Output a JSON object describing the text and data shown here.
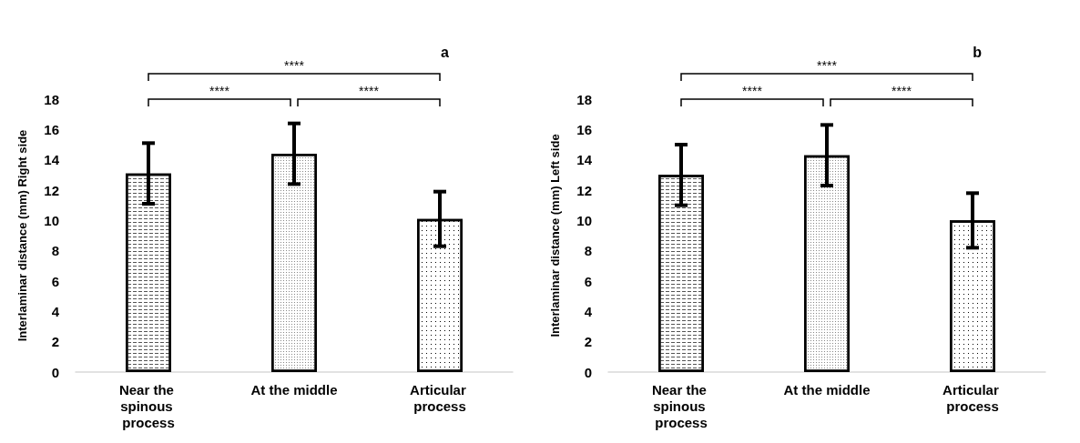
{
  "chart_data": [
    {
      "type": "bar",
      "title": "a",
      "ylabel": "Interlaminar distance (mm) Right side",
      "categories": [
        "Near the spinous process",
        "At the middle",
        "Articular process"
      ],
      "values": [
        13.1,
        14.4,
        10.1
      ],
      "errors": [
        2.0,
        2.0,
        1.8
      ],
      "colors": [
        "#ffffff",
        "#ffffff",
        "#ffffff"
      ],
      "ylim": [
        0,
        18
      ],
      "yticks": [
        0,
        2,
        4,
        6,
        8,
        10,
        12,
        14,
        16,
        18
      ],
      "grid": false,
      "annotations": [
        "****",
        "****",
        "****"
      ]
    },
    {
      "type": "bar",
      "title": "b",
      "ylabel": "Interlaminar distance (mm) Left side",
      "categories": [
        "Near the spinous process",
        "At the middle",
        "Articular process"
      ],
      "values": [
        13.0,
        14.3,
        10.0
      ],
      "errors": [
        2.0,
        2.0,
        1.8
      ],
      "colors": [
        "#ffffff",
        "#ffffff",
        "#ffffff"
      ],
      "ylim": [
        0,
        18
      ],
      "yticks": [
        0,
        2,
        4,
        6,
        8,
        10,
        12,
        14,
        16,
        18
      ],
      "grid": false,
      "annotations": [
        "****",
        "****",
        "****"
      ]
    }
  ]
}
